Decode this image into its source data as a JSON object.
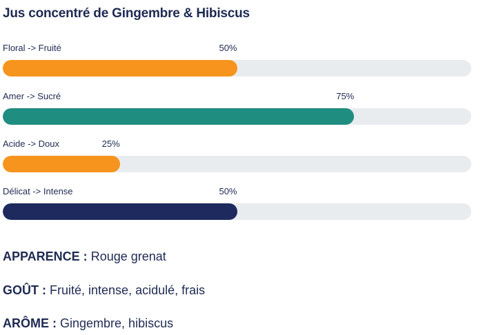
{
  "title": "Jus concentré de Gingembre & Hibiscus",
  "bars": [
    {
      "label": "Floral -> Fruité",
      "percent_label": "50%",
      "value": 50,
      "color": "#f7941d"
    },
    {
      "label": "Amer -> Sucré",
      "percent_label": "75%",
      "value": 75,
      "color": "#1f8d80"
    },
    {
      "label": "Acide -> Doux",
      "percent_label": "25%",
      "value": 25,
      "color": "#f7941d"
    },
    {
      "label": "Délicat -> Intense",
      "percent_label": "50%",
      "value": 50,
      "color": "#1e2a5e"
    }
  ],
  "attributes": [
    {
      "key": "APPARENCE :",
      "value": "Rouge grenat"
    },
    {
      "key": "GOÛT :",
      "value": "Fruité, intense, acidulé, frais"
    },
    {
      "key": "ARÔME :",
      "value": "Gingembre, hibiscus"
    }
  ],
  "colors": {
    "text": "#1e2a52",
    "track": "#e9ecef"
  }
}
